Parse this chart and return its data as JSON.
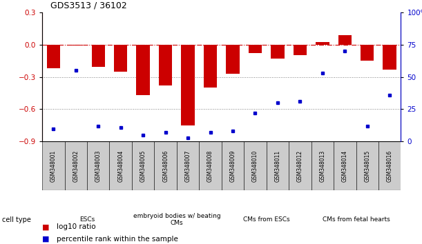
{
  "title": "GDS3513 / 36102",
  "samples": [
    "GSM348001",
    "GSM348002",
    "GSM348003",
    "GSM348004",
    "GSM348005",
    "GSM348006",
    "GSM348007",
    "GSM348008",
    "GSM348009",
    "GSM348010",
    "GSM348011",
    "GSM348012",
    "GSM348013",
    "GSM348014",
    "GSM348015",
    "GSM348016"
  ],
  "log10_ratio": [
    -0.22,
    -0.01,
    -0.21,
    -0.25,
    -0.47,
    -0.38,
    -0.75,
    -0.4,
    -0.27,
    -0.08,
    -0.13,
    -0.1,
    0.02,
    0.09,
    -0.15,
    -0.23
  ],
  "percentile_rank": [
    10,
    55,
    12,
    11,
    5,
    7,
    3,
    7,
    8,
    22,
    30,
    31,
    53,
    70,
    12,
    36
  ],
  "cell_types": [
    {
      "label": "ESCs",
      "start": 0,
      "end": 3,
      "color": "#bbffbb"
    },
    {
      "label": "embryoid bodies w/ beating\nCMs",
      "start": 4,
      "end": 7,
      "color": "#88ee88"
    },
    {
      "label": "CMs from ESCs",
      "start": 8,
      "end": 11,
      "color": "#bbffbb"
    },
    {
      "label": "CMs from fetal hearts",
      "start": 12,
      "end": 15,
      "color": "#44cc44"
    }
  ],
  "bar_color": "#cc0000",
  "dot_color": "#0000cc",
  "ylim_left": [
    -0.9,
    0.3
  ],
  "ylim_right": [
    0,
    100
  ],
  "yticks_left": [
    -0.9,
    -0.6,
    -0.3,
    0.0,
    0.3
  ],
  "yticks_right": [
    0,
    25,
    50,
    75,
    100
  ],
  "hline_y": 0.0,
  "dotted_lines": [
    -0.3,
    -0.6
  ],
  "background_color": "#ffffff",
  "plot_bg_color": "#ffffff",
  "legend_red_label": "log10 ratio",
  "legend_blue_label": "percentile rank within the sample",
  "cell_type_label": "cell type"
}
